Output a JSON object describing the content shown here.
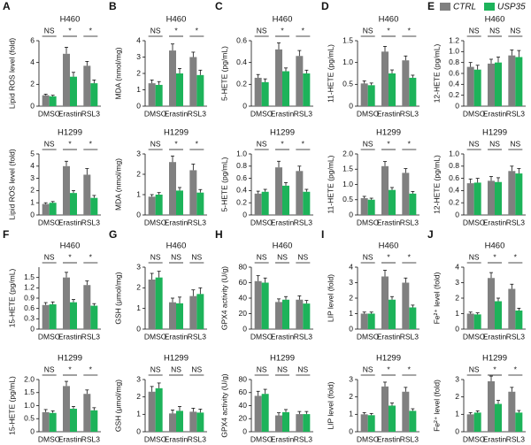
{
  "legend": [
    {
      "name": "CTRL",
      "color": "#808080"
    },
    {
      "name": "USP35",
      "color": "#1db35a"
    }
  ],
  "chart_data": [
    {
      "type": "bar",
      "panel": "A",
      "title": "H460",
      "y_label": "Lipid ROS level (fold)",
      "categories": [
        "DMSO",
        "Erastin",
        "RSL3"
      ],
      "series": [
        {
          "values": [
            1.0,
            4.8,
            3.7
          ],
          "errors": [
            0.1,
            0.6,
            0.4
          ]
        },
        {
          "values": [
            0.9,
            2.7,
            2.1
          ],
          "errors": [
            0.1,
            0.4,
            0.3
          ]
        }
      ],
      "ylim": [
        0,
        6
      ],
      "yticks": [
        0,
        2,
        4,
        6
      ],
      "significance": [
        "NS",
        "*",
        "*"
      ]
    },
    {
      "type": "bar",
      "title": "H1299",
      "y_label": "Lipid ROS level (fold)",
      "categories": [
        "DMSO",
        "Erastin",
        "RSL3"
      ],
      "series": [
        {
          "values": [
            0.9,
            4.0,
            3.3
          ],
          "errors": [
            0.1,
            0.4,
            0.5
          ]
        },
        {
          "values": [
            1.0,
            1.8,
            1.4
          ],
          "errors": [
            0.1,
            0.2,
            0.2
          ]
        }
      ],
      "ylim": [
        0,
        5
      ],
      "yticks": [
        0,
        1,
        2,
        3,
        4,
        5
      ],
      "significance": [
        "NS",
        "*",
        "*"
      ]
    },
    {
      "type": "bar",
      "panel": "B",
      "title": "H460",
      "y_label": "MDA (nmol/mg)",
      "categories": [
        "DMSO",
        "Erastin",
        "RSL3"
      ],
      "series": [
        {
          "values": [
            1.4,
            3.4,
            3.0
          ],
          "errors": [
            0.2,
            0.4,
            0.3
          ]
        },
        {
          "values": [
            1.3,
            2.0,
            1.9
          ],
          "errors": [
            0.2,
            0.3,
            0.3
          ]
        }
      ],
      "ylim": [
        0,
        4
      ],
      "yticks": [
        0,
        1,
        2,
        3,
        4
      ],
      "significance": [
        "NS",
        "*",
        "*"
      ]
    },
    {
      "type": "bar",
      "title": "H1299",
      "y_label": "MDA (nmol/mg)",
      "categories": [
        "DMSO",
        "Erastin",
        "RSL3"
      ],
      "series": [
        {
          "values": [
            0.9,
            2.6,
            2.2
          ],
          "errors": [
            0.1,
            0.3,
            0.3
          ]
        },
        {
          "values": [
            1.0,
            1.2,
            1.1
          ],
          "errors": [
            0.1,
            0.15,
            0.15
          ]
        }
      ],
      "ylim": [
        0,
        3
      ],
      "yticks": [
        0,
        1,
        2,
        3
      ],
      "significance": [
        "NS",
        "*",
        "*"
      ]
    },
    {
      "type": "bar",
      "panel": "C",
      "title": "H460",
      "y_label": "5-HETE (pg/mL)",
      "categories": [
        "DMSO",
        "Erastin",
        "RSL3"
      ],
      "series": [
        {
          "values": [
            0.26,
            0.52,
            0.46
          ],
          "errors": [
            0.03,
            0.06,
            0.05
          ]
        },
        {
          "values": [
            0.22,
            0.32,
            0.3
          ],
          "errors": [
            0.03,
            0.03,
            0.03
          ]
        }
      ],
      "ylim": [
        0,
        0.6
      ],
      "yticks": [
        0,
        0.2,
        0.4,
        0.6
      ],
      "significance": [
        "NS",
        "*",
        "*"
      ]
    },
    {
      "type": "bar",
      "title": "H1299",
      "y_label": "5-HETE (pg/mL)",
      "categories": [
        "DMSO",
        "Erastin",
        "RSL3"
      ],
      "series": [
        {
          "values": [
            0.35,
            0.78,
            0.72
          ],
          "errors": [
            0.04,
            0.1,
            0.08
          ]
        },
        {
          "values": [
            0.38,
            0.48,
            0.38
          ],
          "errors": [
            0.04,
            0.05,
            0.04
          ]
        }
      ],
      "ylim": [
        0,
        1
      ],
      "yticks": [
        0,
        0.2,
        0.4,
        0.6,
        0.8,
        {
          "value": 1,
          "label": "1.0"
        }
      ],
      "significance": [
        "NS",
        "*",
        "*"
      ]
    },
    {
      "type": "bar",
      "panel": "D",
      "title": "H460",
      "y_label": "11-HETE (pg/mL)",
      "categories": [
        "DMSO",
        "Erastin",
        "RSL3"
      ],
      "series": [
        {
          "values": [
            0.52,
            1.25,
            1.05
          ],
          "errors": [
            0.06,
            0.12,
            0.1
          ]
        },
        {
          "values": [
            0.48,
            0.75,
            0.65
          ],
          "errors": [
            0.05,
            0.08,
            0.06
          ]
        }
      ],
      "ylim": [
        0,
        1.5
      ],
      "yticks": [
        0,
        0.5,
        {
          "value": 1,
          "label": "1.0"
        },
        1.5
      ],
      "significance": [
        "NS",
        "*",
        "*"
      ]
    },
    {
      "type": "bar",
      "title": "H1299",
      "y_label": "11-HETE (pg/mL)",
      "categories": [
        "DMSO",
        "Erastin",
        "RSL3"
      ],
      "series": [
        {
          "values": [
            0.55,
            1.6,
            1.38
          ],
          "errors": [
            0.06,
            0.15,
            0.14
          ]
        },
        {
          "values": [
            0.5,
            0.82,
            0.7
          ],
          "errors": [
            0.05,
            0.08,
            0.07
          ]
        }
      ],
      "ylim": [
        0,
        2
      ],
      "yticks": [
        0,
        0.5,
        {
          "value": 1,
          "label": "1.0"
        },
        1.5,
        {
          "value": 2,
          "label": "2.0"
        }
      ],
      "significance": [
        "NS",
        "*",
        "*"
      ]
    },
    {
      "type": "bar",
      "panel": "E",
      "title": "H460",
      "y_label": "12-HETE (pg/mL)",
      "categories": [
        "DMSO",
        "Erastin",
        "RSL3"
      ],
      "series": [
        {
          "values": [
            0.72,
            0.78,
            0.93
          ],
          "errors": [
            0.08,
            0.08,
            0.1
          ]
        },
        {
          "values": [
            0.67,
            0.8,
            0.9
          ],
          "errors": [
            0.08,
            0.1,
            0.12
          ]
        }
      ],
      "ylim": [
        0,
        1.2
      ],
      "yticks": [
        0,
        0.2,
        0.4,
        0.6,
        0.8,
        {
          "value": 1,
          "label": "1.0"
        },
        1.2
      ],
      "significance": [
        "NS",
        "NS",
        "NS"
      ]
    },
    {
      "type": "bar",
      "title": "H1299",
      "y_label": "12-HETE (pg/mL)",
      "categories": [
        "DMSO",
        "Erastin",
        "RSL3"
      ],
      "series": [
        {
          "values": [
            0.52,
            0.56,
            0.72
          ],
          "errors": [
            0.07,
            0.07,
            0.08
          ]
        },
        {
          "values": [
            0.53,
            0.54,
            0.68
          ],
          "errors": [
            0.07,
            0.07,
            0.08
          ]
        }
      ],
      "ylim": [
        0,
        1
      ],
      "yticks": [
        0,
        0.2,
        0.4,
        0.6,
        0.8,
        {
          "value": 1,
          "label": "1.0"
        }
      ],
      "significance": [
        "NS",
        "NS",
        "NS"
      ]
    },
    {
      "type": "bar",
      "panel": "F",
      "title": "H460",
      "y_label": "15-HETE (pg/mL)",
      "categories": [
        "DMSO",
        "Erastin",
        "RSL3"
      ],
      "series": [
        {
          "values": [
            0.7,
            1.5,
            1.28
          ],
          "errors": [
            0.07,
            0.15,
            0.12
          ]
        },
        {
          "values": [
            0.72,
            0.78,
            0.68
          ],
          "errors": [
            0.07,
            0.08,
            0.06
          ]
        }
      ],
      "ylim": [
        0,
        1.8
      ],
      "yticks": [
        0,
        0.3,
        0.6,
        0.9,
        1.2,
        1.5
      ],
      "significance": [
        "NS",
        "*",
        "*"
      ]
    },
    {
      "type": "bar",
      "title": "H1299",
      "y_label": "15-HETE (pg/mL)",
      "categories": [
        "DMSO",
        "Erastin",
        "RSL3"
      ],
      "series": [
        {
          "values": [
            0.75,
            1.75,
            1.45
          ],
          "errors": [
            0.1,
            0.18,
            0.15
          ]
        },
        {
          "values": [
            0.72,
            0.88,
            0.82
          ],
          "errors": [
            0.08,
            0.09,
            0.1
          ]
        }
      ],
      "ylim": [
        0,
        2
      ],
      "yticks": [
        0,
        0.5,
        {
          "value": 1,
          "label": "1.0"
        },
        1.5,
        {
          "value": 2,
          "label": "2.0"
        }
      ],
      "significance": [
        "NS",
        "*",
        "*"
      ]
    },
    {
      "type": "bar",
      "panel": "G",
      "title": "H460",
      "y_label": "GSH (μmol/mg)",
      "categories": [
        "DMSO",
        "Erastin",
        "RSL3"
      ],
      "series": [
        {
          "values": [
            2.4,
            1.3,
            1.6
          ],
          "errors": [
            0.3,
            0.2,
            0.3
          ]
        },
        {
          "values": [
            2.5,
            1.25,
            1.7
          ],
          "errors": [
            0.3,
            0.3,
            0.3
          ]
        }
      ],
      "ylim": [
        0,
        3
      ],
      "yticks": [
        0,
        1,
        2,
        3
      ],
      "significance": [
        "NS",
        "NS",
        "NS"
      ]
    },
    {
      "type": "bar",
      "title": "H1299",
      "y_label": "GSH (μmol/mg)",
      "categories": [
        "DMSO",
        "Erastin",
        "RSL3"
      ],
      "series": [
        {
          "values": [
            2.3,
            1.05,
            1.15
          ],
          "errors": [
            0.3,
            0.2,
            0.2
          ]
        },
        {
          "values": [
            2.5,
            1.2,
            1.1
          ],
          "errors": [
            0.3,
            0.25,
            0.2
          ]
        }
      ],
      "ylim": [
        0,
        3
      ],
      "yticks": [
        0,
        1,
        2,
        3
      ],
      "significance": [
        "NS",
        "NS",
        "NS"
      ]
    },
    {
      "type": "bar",
      "panel": "H",
      "title": "H460",
      "y_label": "GPX4 activity (U/g)",
      "categories": [
        "DMSO",
        "Erastin",
        "RSL3"
      ],
      "series": [
        {
          "values": [
            62,
            35,
            38
          ],
          "errors": [
            7,
            4,
            5
          ]
        },
        {
          "values": [
            60,
            38,
            33
          ],
          "errors": [
            6,
            4,
            4
          ]
        }
      ],
      "ylim": [
        0,
        80
      ],
      "yticks": [
        0,
        20,
        40,
        60,
        80
      ],
      "significance": [
        "NS",
        "NS",
        "NS"
      ]
    },
    {
      "type": "bar",
      "title": "H1299",
      "y_label": "GPX4 activity (U/g)",
      "categories": [
        "DMSO",
        "Erastin",
        "RSL3"
      ],
      "series": [
        {
          "values": [
            55,
            25,
            27
          ],
          "errors": [
            7,
            4,
            4
          ]
        },
        {
          "values": [
            58,
            30,
            27
          ],
          "errors": [
            7,
            4,
            4
          ]
        }
      ],
      "ylim": [
        0,
        80
      ],
      "yticks": [
        0,
        20,
        40,
        60,
        80
      ],
      "significance": [
        "NS",
        "NS",
        "NS"
      ]
    },
    {
      "type": "bar",
      "panel": "I",
      "title": "H460",
      "y_label": "LIP level (fold)",
      "categories": [
        "DMSO",
        "Erastin",
        "RSL3"
      ],
      "series": [
        {
          "values": [
            1.0,
            3.4,
            3.0
          ],
          "errors": [
            0.1,
            0.4,
            0.3
          ]
        },
        {
          "values": [
            1.0,
            1.9,
            1.4
          ],
          "errors": [
            0.1,
            0.2,
            0.15
          ]
        }
      ],
      "ylim": [
        0,
        4
      ],
      "yticks": [
        0,
        1,
        2,
        3,
        4
      ],
      "significance": [
        "NS",
        "*",
        "*"
      ]
    },
    {
      "type": "bar",
      "title": "H1299",
      "y_label": "LIP level (fold)",
      "categories": [
        "DMSO",
        "Erastin",
        "RSL3"
      ],
      "series": [
        {
          "values": [
            1.0,
            2.6,
            2.3
          ],
          "errors": [
            0.1,
            0.25,
            0.25
          ]
        },
        {
          "values": [
            0.95,
            1.5,
            1.2
          ],
          "errors": [
            0.1,
            0.15,
            0.12
          ]
        }
      ],
      "ylim": [
        0,
        3
      ],
      "yticks": [
        0,
        1,
        2,
        3
      ],
      "significance": [
        "NS",
        "*",
        "*"
      ]
    },
    {
      "type": "bar",
      "panel": "J",
      "title": "H460",
      "y_label": "Fe²⁺ level (fold)",
      "categories": [
        "DMSO",
        "Erastin",
        "RSL3"
      ],
      "series": [
        {
          "values": [
            1.0,
            3.3,
            2.6
          ],
          "errors": [
            0.1,
            0.35,
            0.3
          ]
        },
        {
          "values": [
            0.95,
            1.8,
            1.2
          ],
          "errors": [
            0.1,
            0.2,
            0.15
          ]
        }
      ],
      "ylim": [
        0,
        4
      ],
      "yticks": [
        0,
        1,
        2,
        3,
        4
      ],
      "significance": [
        "NS",
        "*",
        "*"
      ]
    },
    {
      "type": "bar",
      "title": "H1299",
      "y_label": "Fe²⁺ level (fold)",
      "categories": [
        "DMSO",
        "Erastin",
        "RSL3"
      ],
      "series": [
        {
          "values": [
            1.0,
            2.9,
            2.3
          ],
          "errors": [
            0.1,
            0.3,
            0.25
          ]
        },
        {
          "values": [
            1.1,
            1.6,
            1.1
          ],
          "errors": [
            0.1,
            0.2,
            0.12
          ]
        }
      ],
      "ylim": [
        0,
        3
      ],
      "yticks": [
        0,
        1,
        2,
        3
      ],
      "significance": [
        "NS",
        "*",
        "*"
      ]
    }
  ]
}
